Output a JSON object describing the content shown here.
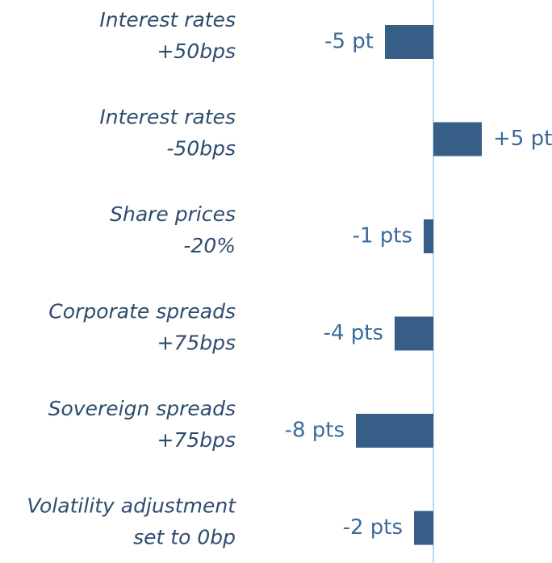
{
  "chart_data": {
    "type": "barh",
    "categories": [
      [
        "Interest rates",
        "+50bps"
      ],
      [
        "Interest rates",
        "-50bps"
      ],
      [
        "Share prices",
        "-20%"
      ],
      [
        "Corporate spreads",
        "+75bps"
      ],
      [
        "Sovereign spreads",
        "+75bps"
      ],
      [
        "Volatility adjustment",
        "set to 0bp"
      ]
    ],
    "values": [
      -5,
      5,
      -1,
      -4,
      -8,
      -2
    ],
    "value_labels": [
      "-5 pt",
      "+5 pt",
      "-1 pts",
      "-4 pts",
      "-8 pts",
      "-2 pts"
    ],
    "color": "#365e86",
    "xlim": [
      -10,
      12
    ]
  }
}
